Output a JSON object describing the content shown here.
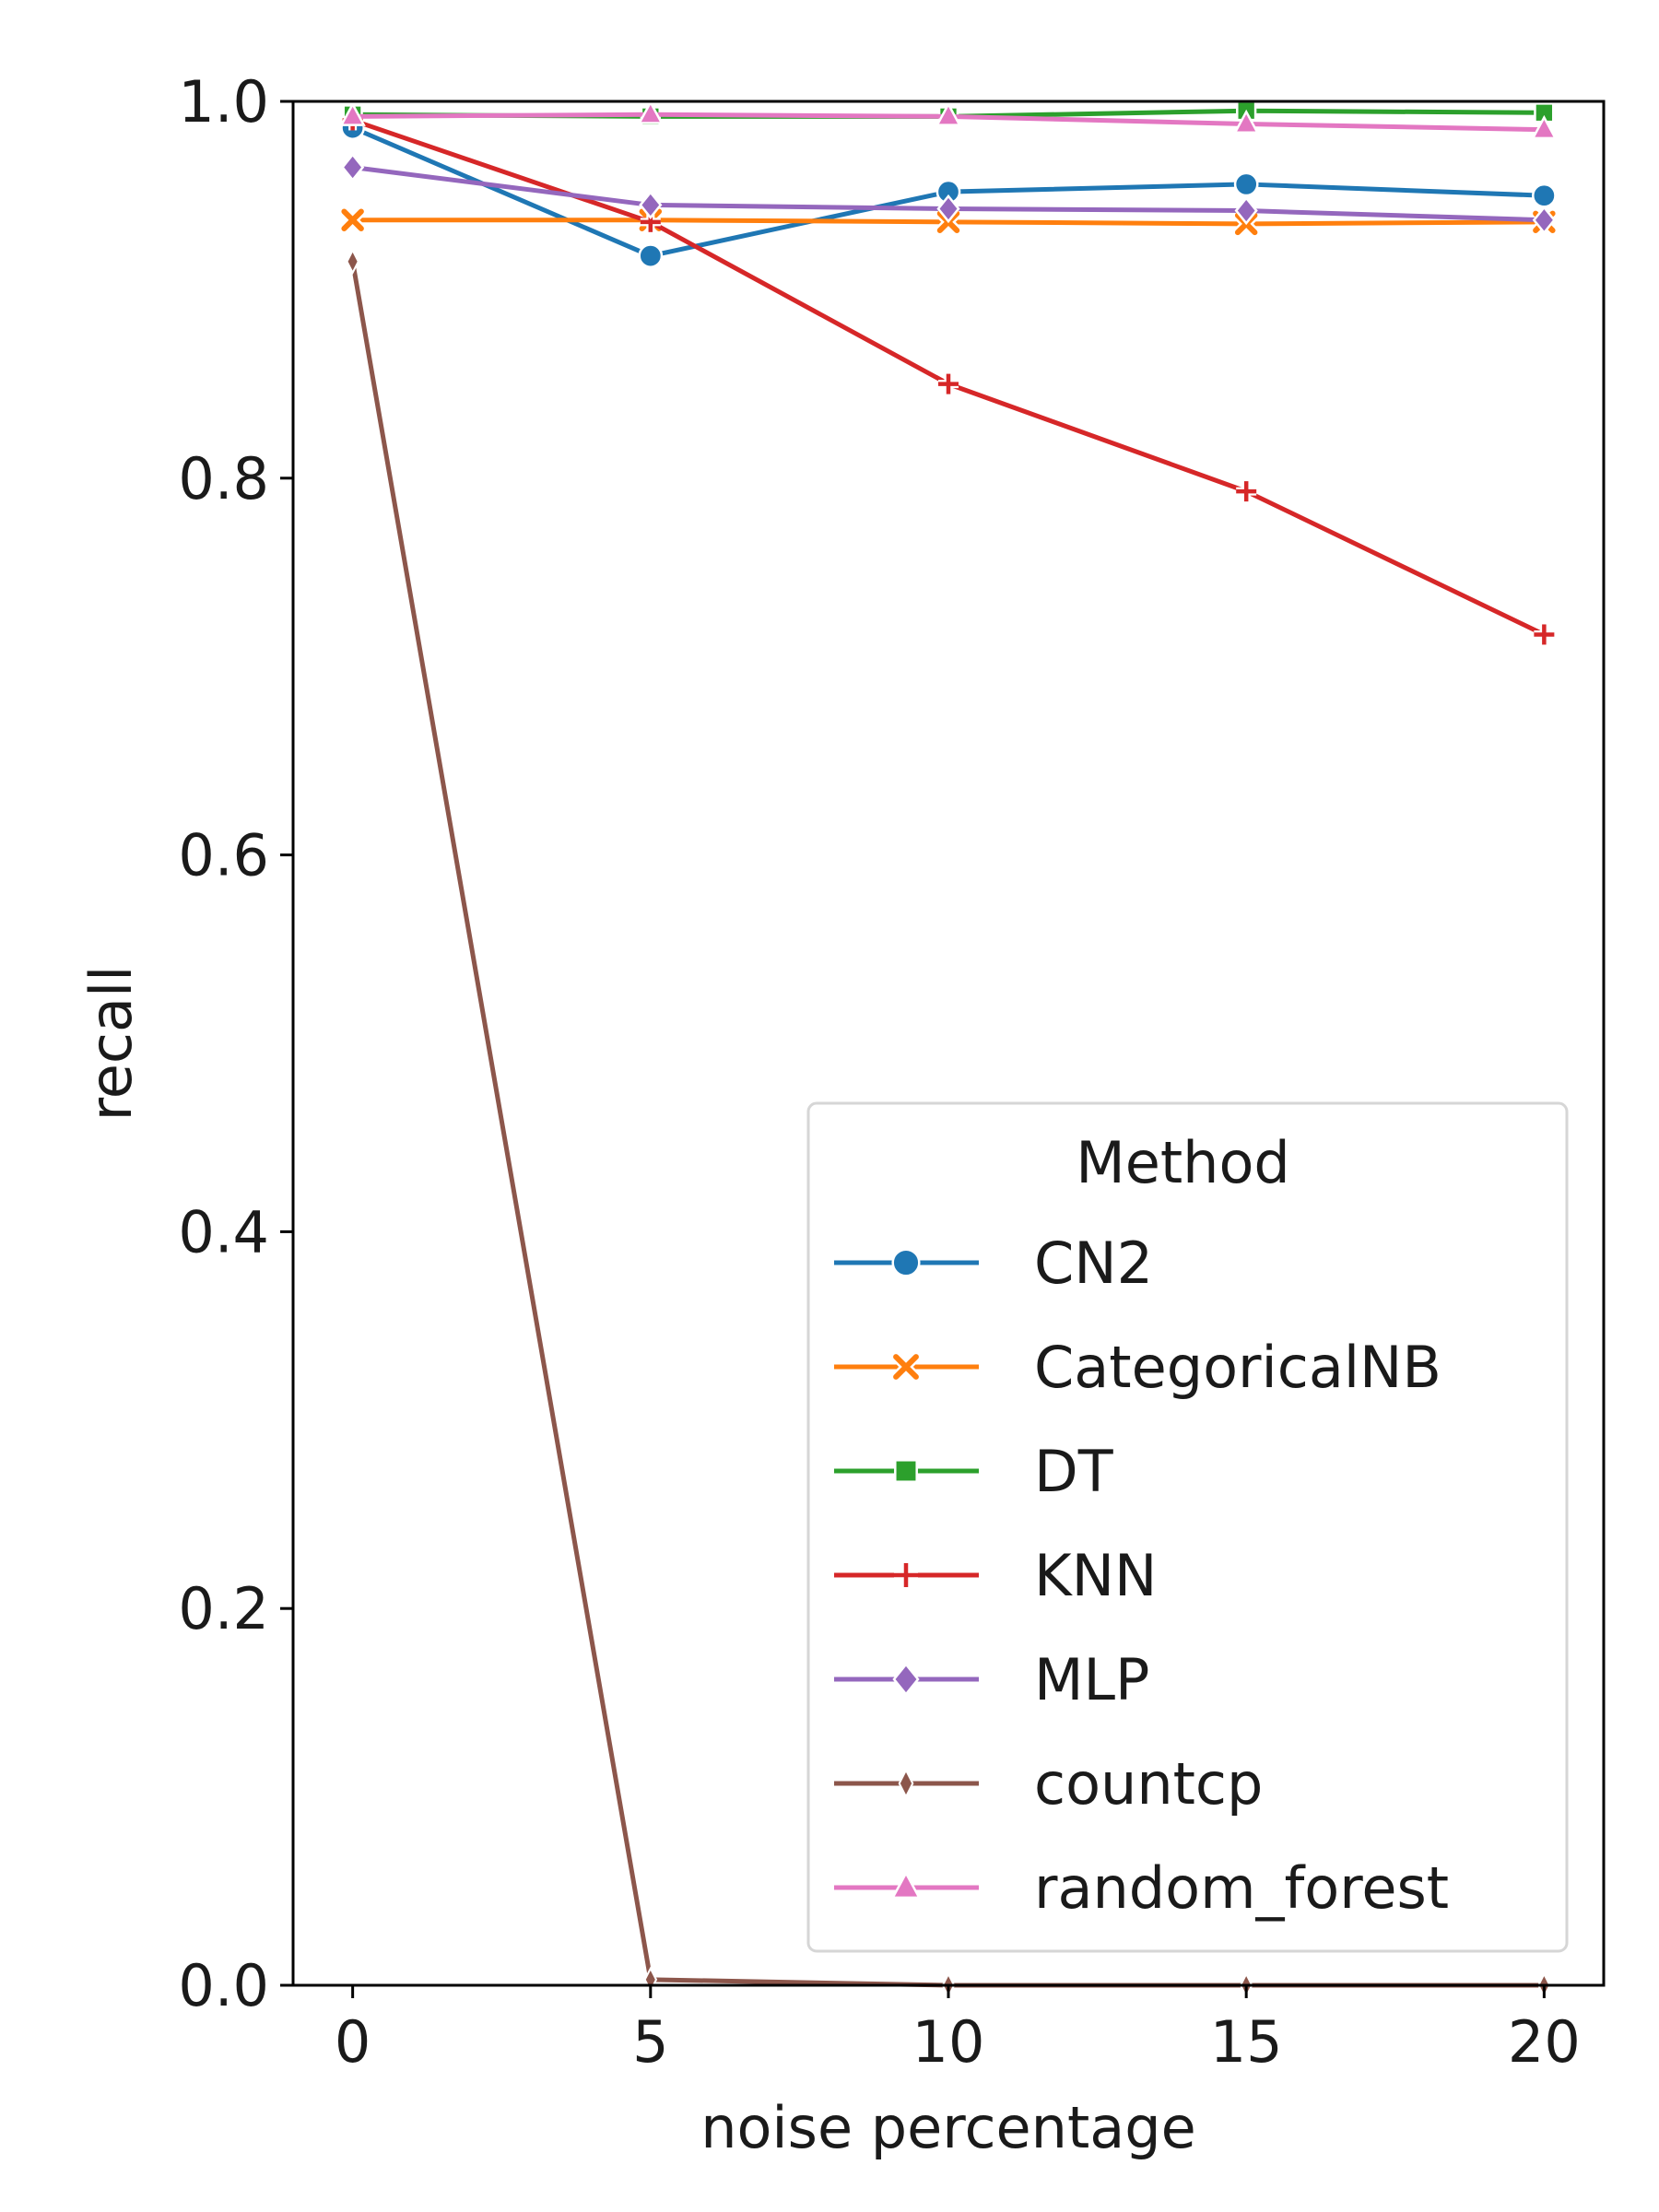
{
  "chart_data": {
    "type": "line",
    "title": "",
    "xlabel": "noise percentage",
    "ylabel": "recall",
    "x": [
      0,
      5,
      10,
      15,
      20
    ],
    "xlim": [
      -1,
      21
    ],
    "ylim": [
      0.0,
      1.0
    ],
    "x_ticks": [
      0,
      5,
      10,
      15,
      20
    ],
    "x_tick_labels": [
      "0",
      "5",
      "10",
      "15",
      "20"
    ],
    "y_ticks": [
      0.0,
      0.2,
      0.4,
      0.6,
      0.8,
      1.0
    ],
    "y_tick_labels": [
      "0.0",
      "0.2",
      "0.4",
      "0.6",
      "0.8",
      "1.0"
    ],
    "grid": false,
    "legend": {
      "title": "Method",
      "placement": "lower-right"
    },
    "series": [
      {
        "name": "CN2",
        "color": "#1f77b4",
        "marker": "circle",
        "values": [
          0.986,
          0.918,
          0.952,
          0.956,
          0.95
        ]
      },
      {
        "name": "CategoricalNB",
        "color": "#ff7f0e",
        "marker": "x",
        "values": [
          0.937,
          0.937,
          0.936,
          0.935,
          0.936
        ]
      },
      {
        "name": "DT",
        "color": "#2ca02c",
        "marker": "square",
        "values": [
          0.993,
          0.992,
          0.992,
          0.995,
          0.994
        ]
      },
      {
        "name": "KNN",
        "color": "#d62728",
        "marker": "plus",
        "values": [
          0.99,
          0.936,
          0.85,
          0.793,
          0.717
        ]
      },
      {
        "name": "MLP",
        "color": "#9467bd",
        "marker": "diamond",
        "values": [
          0.965,
          0.945,
          0.943,
          0.942,
          0.937
        ]
      },
      {
        "name": "countcp",
        "color": "#8c564b",
        "marker": "thin-diamond",
        "values": [
          0.915,
          0.003,
          0.0,
          0.0,
          0.0
        ]
      },
      {
        "name": "random_forest",
        "color": "#e377c2",
        "marker": "triangle",
        "values": [
          0.992,
          0.993,
          0.992,
          0.988,
          0.985
        ]
      }
    ]
  }
}
